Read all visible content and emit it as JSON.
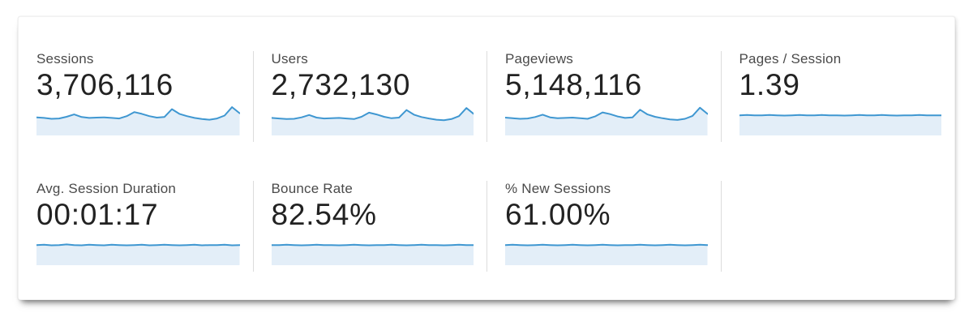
{
  "colors": {
    "spark_line": "#3f97d1",
    "spark_fill": "#e3eef8",
    "label_text": "#4a4a4a",
    "value_text": "#222222",
    "divider": "#dcdcdc",
    "card_bg": "#ffffff"
  },
  "rows": [
    [
      {
        "label": "Sessions",
        "value": "3,706,116",
        "spark": [
          0.62,
          0.6,
          0.57,
          0.58,
          0.64,
          0.72,
          0.63,
          0.6,
          0.61,
          0.62,
          0.6,
          0.58,
          0.66,
          0.8,
          0.74,
          0.66,
          0.61,
          0.63,
          0.9,
          0.74,
          0.66,
          0.6,
          0.56,
          0.54,
          0.58,
          0.68,
          0.97,
          0.76
        ]
      },
      {
        "label": "Users",
        "value": "2,732,130",
        "spark": [
          0.6,
          0.58,
          0.56,
          0.57,
          0.62,
          0.7,
          0.61,
          0.58,
          0.59,
          0.6,
          0.58,
          0.56,
          0.64,
          0.78,
          0.72,
          0.64,
          0.59,
          0.61,
          0.87,
          0.71,
          0.63,
          0.58,
          0.54,
          0.52,
          0.56,
          0.66,
          0.94,
          0.73
        ]
      },
      {
        "label": "Pageviews",
        "value": "5,148,116",
        "spark": [
          0.61,
          0.59,
          0.57,
          0.58,
          0.63,
          0.71,
          0.62,
          0.59,
          0.6,
          0.61,
          0.59,
          0.57,
          0.65,
          0.79,
          0.73,
          0.65,
          0.6,
          0.62,
          0.88,
          0.72,
          0.64,
          0.59,
          0.55,
          0.53,
          0.57,
          0.67,
          0.95,
          0.74
        ]
      },
      {
        "label": "Pages / Session",
        "value": "1.39",
        "spark": [
          0.69,
          0.7,
          0.69,
          0.69,
          0.7,
          0.69,
          0.68,
          0.69,
          0.7,
          0.69,
          0.69,
          0.7,
          0.69,
          0.69,
          0.68,
          0.69,
          0.7,
          0.69,
          0.69,
          0.7,
          0.69,
          0.68,
          0.69,
          0.69,
          0.7,
          0.69,
          0.69,
          0.69
        ]
      }
    ],
    [
      {
        "label": "Avg. Session Duration",
        "value": "00:01:17",
        "spark": [
          0.69,
          0.7,
          0.68,
          0.69,
          0.71,
          0.69,
          0.68,
          0.7,
          0.69,
          0.68,
          0.7,
          0.69,
          0.68,
          0.69,
          0.7,
          0.68,
          0.69,
          0.7,
          0.69,
          0.68,
          0.69,
          0.7,
          0.68,
          0.69,
          0.69,
          0.7,
          0.68,
          0.69
        ]
      },
      {
        "label": "Bounce Rate",
        "value": "82.54%",
        "spark": [
          0.69,
          0.69,
          0.7,
          0.69,
          0.68,
          0.69,
          0.7,
          0.69,
          0.69,
          0.68,
          0.69,
          0.7,
          0.69,
          0.68,
          0.69,
          0.69,
          0.7,
          0.69,
          0.68,
          0.69,
          0.7,
          0.69,
          0.69,
          0.68,
          0.69,
          0.7,
          0.69,
          0.69
        ]
      },
      {
        "label": "% New Sessions",
        "value": "61.00%",
        "spark": [
          0.69,
          0.7,
          0.69,
          0.68,
          0.69,
          0.7,
          0.69,
          0.68,
          0.69,
          0.7,
          0.69,
          0.68,
          0.69,
          0.7,
          0.69,
          0.68,
          0.69,
          0.69,
          0.7,
          0.69,
          0.68,
          0.69,
          0.7,
          0.69,
          0.68,
          0.69,
          0.7,
          0.69
        ]
      }
    ]
  ]
}
